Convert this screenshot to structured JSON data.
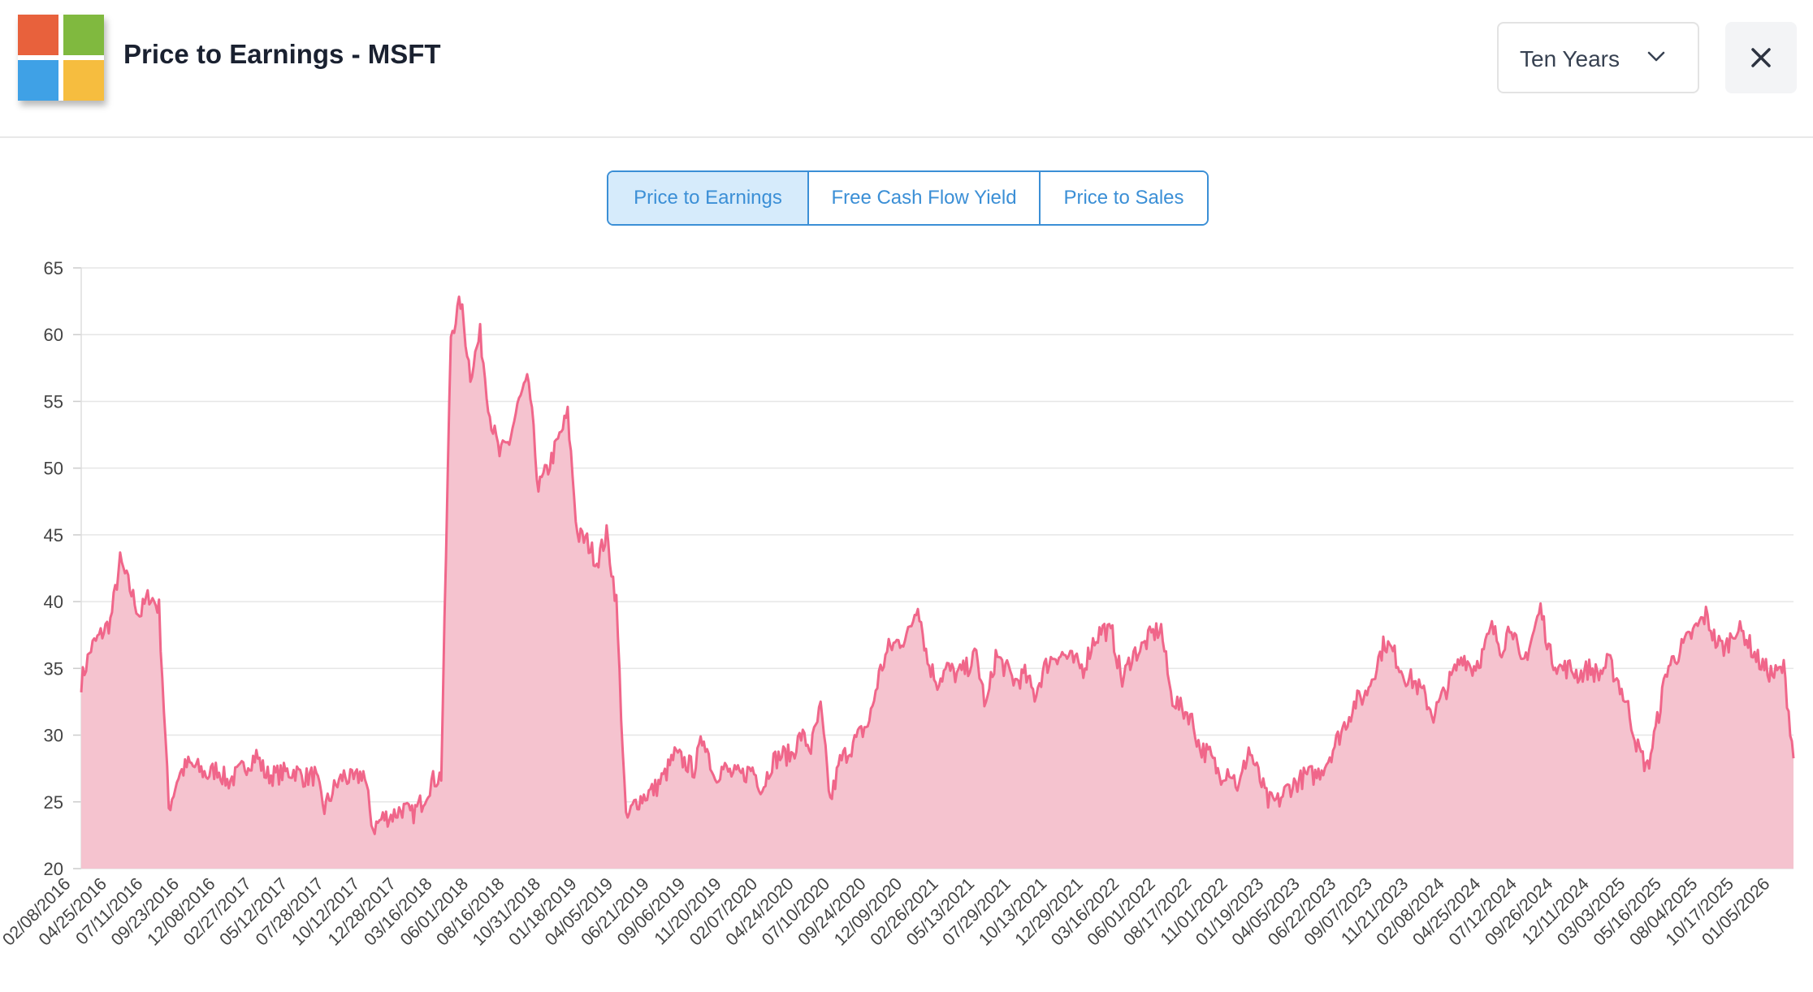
{
  "header": {
    "title": "Price to Earnings - MSFT",
    "range_label": "Ten Years"
  },
  "tabs": [
    {
      "label": "Price to Earnings",
      "active": true
    },
    {
      "label": "Free Cash Flow Yield",
      "active": false
    },
    {
      "label": "Price to Sales",
      "active": false
    }
  ],
  "colors": {
    "line": "#f0668a",
    "fill": "#f5c3cf",
    "grid": "#e6e6e6",
    "accent": "#3b8fd6"
  },
  "icons": {
    "logo": "microsoft-logo",
    "dropdown": "chevron-down-icon",
    "close": "close-icon"
  },
  "chart_data": {
    "type": "area",
    "ylim": [
      20,
      65
    ],
    "yticks": [
      65,
      60,
      55,
      50,
      45,
      40,
      35,
      30,
      25,
      20
    ],
    "grid": true,
    "x_tick_labels": [
      "02/08/2016",
      "04/25/2016",
      "07/11/2016",
      "09/23/2016",
      "12/08/2016",
      "02/27/2017",
      "05/12/2017",
      "07/28/2017",
      "10/12/2017",
      "12/28/2017",
      "03/16/2018",
      "06/01/2018",
      "08/16/2018",
      "10/31/2018",
      "01/18/2019",
      "04/05/2019",
      "06/21/2019",
      "09/06/2019",
      "11/20/2019",
      "02/07/2020",
      "04/24/2020",
      "07/10/2020",
      "09/24/2020",
      "12/09/2020",
      "02/26/2021",
      "05/13/2021",
      "07/29/2021",
      "10/13/2021",
      "12/29/2021",
      "03/16/2022",
      "06/01/2022",
      "08/17/2022",
      "11/01/2022",
      "01/19/2023",
      "04/05/2023",
      "06/22/2023",
      "09/07/2023",
      "11/21/2023",
      "02/08/2024",
      "04/25/2024",
      "07/12/2024",
      "09/26/2024",
      "12/11/2024",
      "03/03/2025",
      "05/16/2025",
      "08/04/2025",
      "10/17/2025",
      "01/05/2026"
    ],
    "series": [
      {
        "values": [
          34,
          36.5,
          37.5,
          38.5,
          43,
          41,
          39,
          40.5,
          39.5,
          24.5,
          27,
          27.8,
          27.5,
          27,
          27.5,
          26.5,
          27,
          27.8,
          28.5,
          27,
          27,
          27.2,
          27.3,
          26.8,
          27,
          24.5,
          26,
          27,
          26.5,
          27.3,
          23,
          23.8,
          24,
          24.5,
          24,
          25,
          26.5,
          27,
          60,
          62.5,
          57,
          60,
          54,
          51,
          52,
          55,
          56.5,
          48.5,
          50,
          52,
          54,
          45,
          44.5,
          43,
          45,
          40,
          23.5,
          25,
          25.5,
          26,
          27,
          28.5,
          28,
          27.5,
          30,
          27,
          27.5,
          27,
          27,
          27.5,
          26,
          28,
          28.5,
          28.5,
          30,
          29,
          32,
          25,
          28,
          29,
          30,
          31,
          34.5,
          36.5,
          37,
          37.5,
          40,
          35.5,
          34,
          35,
          34.5,
          35,
          36,
          32,
          36,
          35,
          34,
          34.5,
          33,
          35,
          36,
          36,
          35.5,
          35,
          37,
          38,
          37.5,
          34,
          36,
          36.5,
          37.5,
          38,
          33,
          32,
          31.5,
          29,
          28.5,
          27,
          27.5,
          26,
          29,
          27,
          25,
          25,
          26,
          26.5,
          27,
          27,
          28,
          29.5,
          31,
          32.5,
          33,
          35,
          37,
          36,
          34.5,
          34,
          33,
          31.5,
          33,
          34.5,
          36,
          35,
          36,
          38,
          36.5,
          38.5,
          35,
          37,
          39.5,
          36,
          35,
          35,
          34.5,
          35,
          34.5,
          35.5,
          34,
          32,
          29,
          27.5,
          31,
          35,
          36,
          37,
          38,
          39,
          37,
          36.5,
          38,
          37.5,
          36,
          35,
          34.5,
          35,
          28.5
        ]
      }
    ]
  }
}
